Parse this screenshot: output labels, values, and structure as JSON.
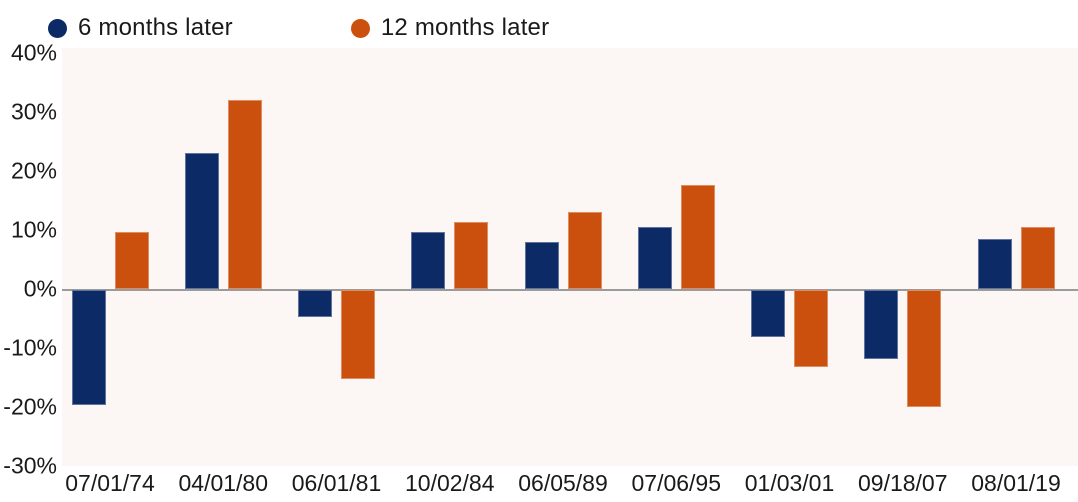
{
  "legend": {
    "items": [
      {
        "label": "6 months later",
        "color": "#0b2a66"
      },
      {
        "label": "12 months later",
        "color": "#cb500e"
      }
    ]
  },
  "chart_data": {
    "type": "bar",
    "title": "",
    "xlabel": "",
    "ylabel": "",
    "unit": "%",
    "categories": [
      "07/01/74",
      "04/01/80",
      "06/01/81",
      "10/02/84",
      "06/05/89",
      "07/06/95",
      "01/03/01",
      "09/18/07",
      "08/01/19"
    ],
    "series": [
      {
        "name": "6 months later",
        "color": "#0b2a66",
        "values": [
          -19.5,
          23.0,
          -4.5,
          9.7,
          8.0,
          10.5,
          -8.0,
          -11.7,
          8.5
        ]
      },
      {
        "name": "12 months later",
        "color": "#cb500e",
        "values": [
          9.7,
          32.0,
          -15.0,
          11.4,
          13.0,
          17.6,
          -13.0,
          -19.8,
          10.5
        ]
      }
    ],
    "y_ticks": [
      "40%",
      "30%",
      "20%",
      "10%",
      "0%",
      "-10%",
      "-20%",
      "-30%"
    ],
    "ylim": [
      -30,
      40
    ],
    "grid": "zero-line-only",
    "legend_position": "top-left",
    "plot_background": "#fcf7f4",
    "zero_line_color": "#9b9b9b",
    "text_color": "#1a1a1a"
  }
}
